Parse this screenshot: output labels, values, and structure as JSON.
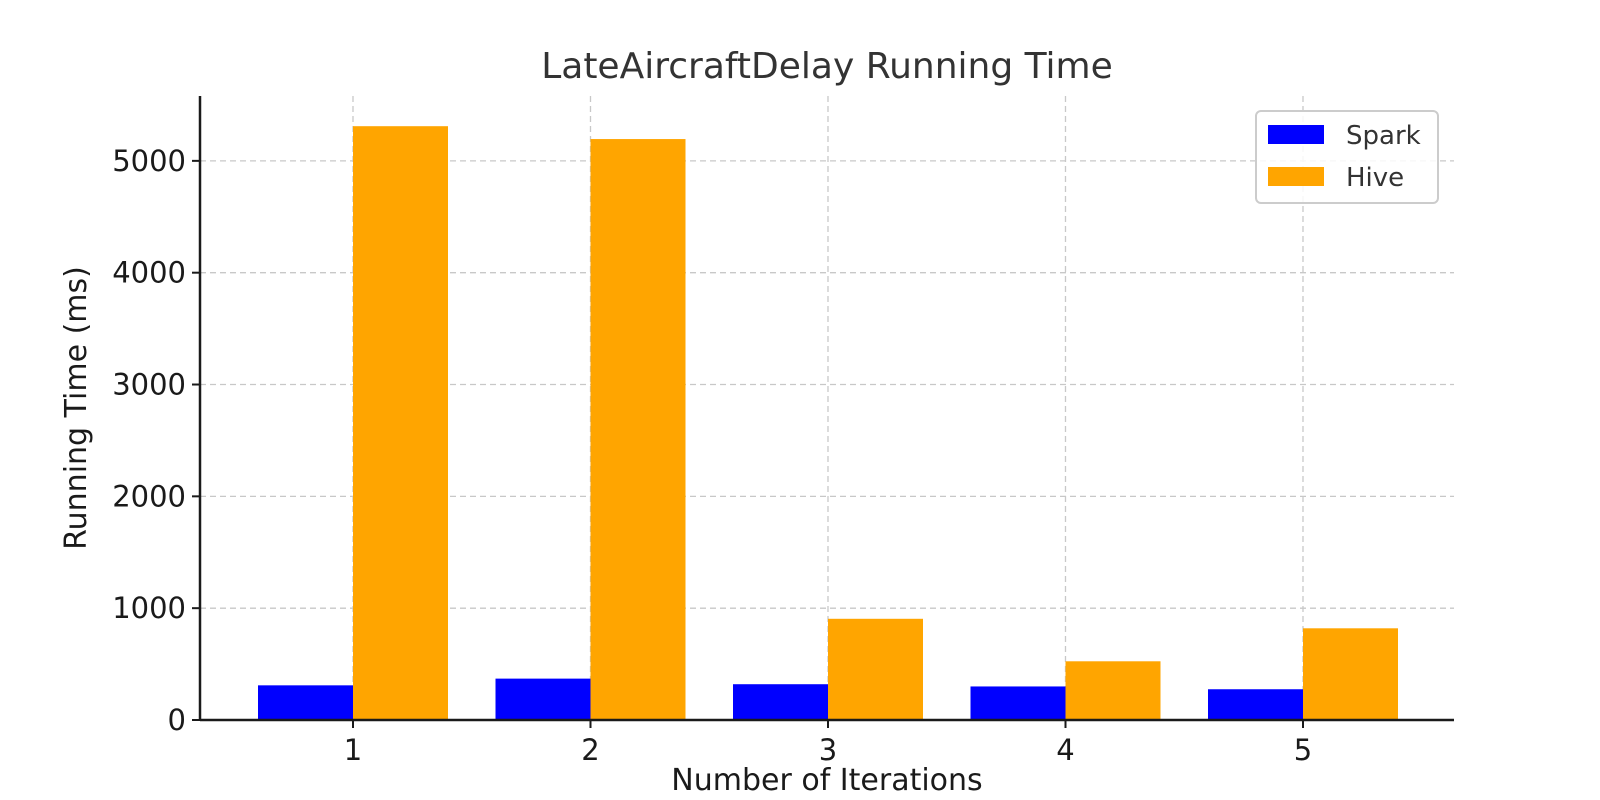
{
  "chart_data": {
    "type": "bar",
    "title": "LateAircraftDelay Running Time",
    "xlabel": "Number of Iterations",
    "ylabel": "Running Time (ms)",
    "categories": [
      "1",
      "2",
      "3",
      "4",
      "5"
    ],
    "ylim": [
      0,
      5580
    ],
    "yticks": [
      0,
      1000,
      2000,
      3000,
      4000,
      5000
    ],
    "grid": true,
    "legend_position": "top-right",
    "series": [
      {
        "name": "Spark",
        "color": "#0000ff",
        "values": [
          310,
          370,
          320,
          300,
          275
        ]
      },
      {
        "name": "Hive",
        "color": "#ffa500",
        "values": [
          5310,
          5195,
          905,
          525,
          820
        ]
      }
    ]
  }
}
